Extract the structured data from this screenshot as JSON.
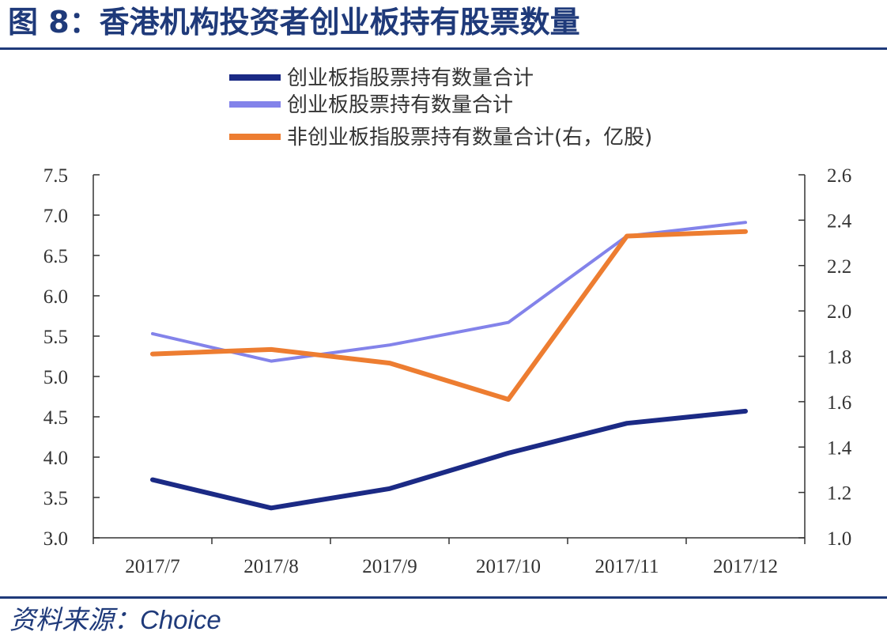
{
  "title": "图 8：香港机构投资者创业板持有股票数量",
  "source": "资料来源：Choice",
  "colors": {
    "title": "#1f3a7a",
    "series1": "#1b2a85",
    "series2": "#8383ea",
    "series3": "#ed7d31",
    "axis": "#333333"
  },
  "chart_data": {
    "type": "line",
    "categories": [
      "2017/7",
      "2017/8",
      "2017/9",
      "2017/10",
      "2017/11",
      "2017/12"
    ],
    "y_left": {
      "min": 3.0,
      "max": 7.5,
      "ticks": [
        "3.0",
        "3.5",
        "4.0",
        "4.5",
        "5.0",
        "5.5",
        "6.0",
        "6.5",
        "7.0",
        "7.5"
      ]
    },
    "y_right": {
      "min": 1.0,
      "max": 2.6,
      "ticks": [
        "1.0",
        "1.2",
        "1.4",
        "1.6",
        "1.8",
        "2.0",
        "2.2",
        "2.4",
        "2.6"
      ]
    },
    "series": [
      {
        "name": "创业板指股票持有数量合计",
        "axis": "left",
        "color": "#1b2a85",
        "values": [
          3.72,
          3.37,
          3.61,
          4.05,
          4.42,
          4.57
        ]
      },
      {
        "name": "创业板股票持有数量合计",
        "axis": "left",
        "color": "#8383ea",
        "values": [
          5.53,
          5.19,
          5.39,
          5.67,
          6.74,
          6.91
        ]
      },
      {
        "name": "非创业板指股票持有数量合计(右，亿股)",
        "axis": "right",
        "color": "#ed7d31",
        "values": [
          1.81,
          1.83,
          1.77,
          1.61,
          2.33,
          2.35
        ]
      }
    ],
    "legend": "top",
    "grid": false
  }
}
